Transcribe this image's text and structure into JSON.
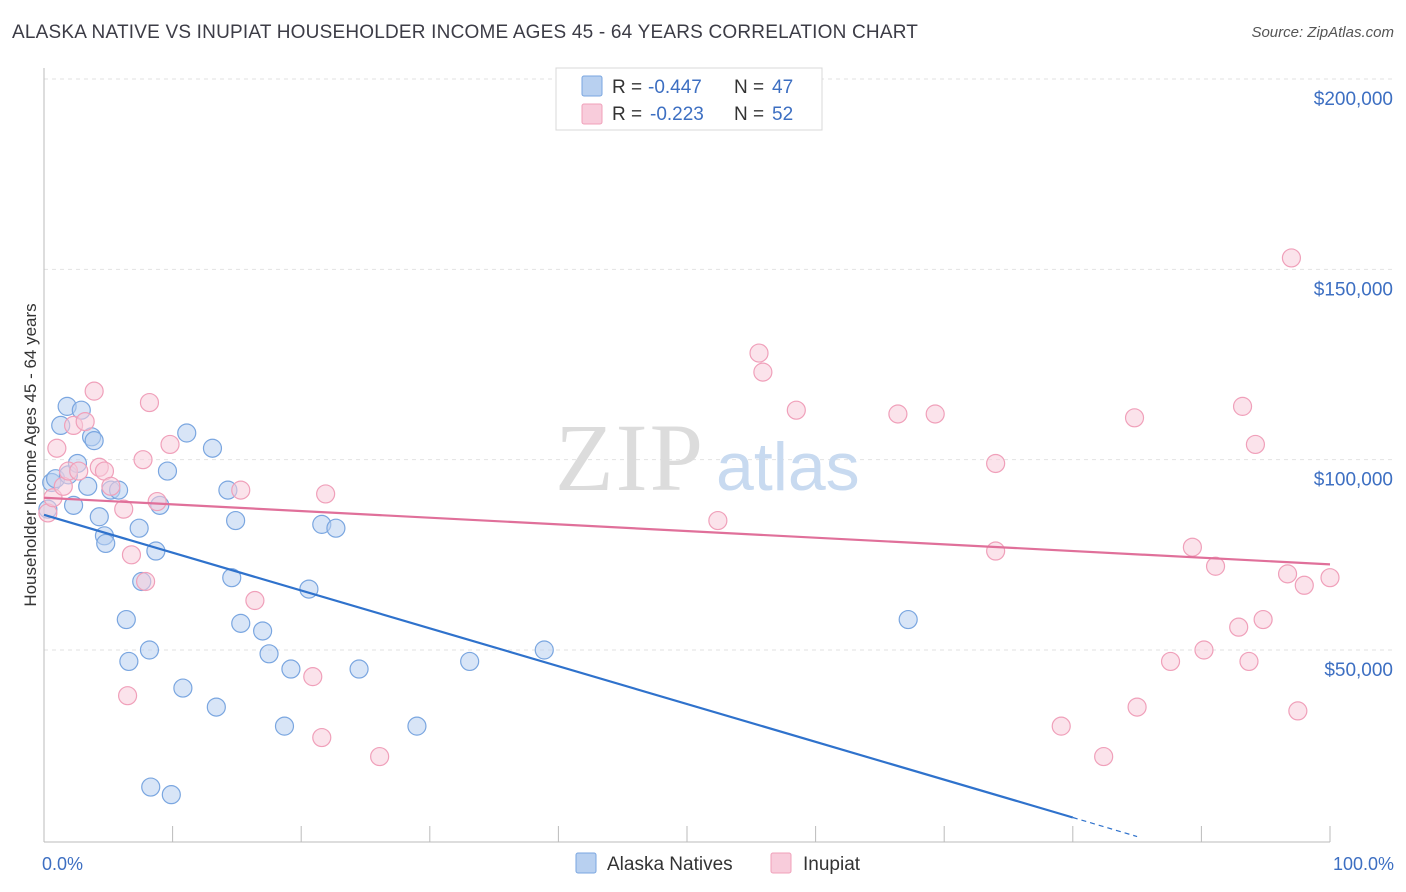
{
  "title": "ALASKA NATIVE VS INUPIAT HOUSEHOLDER INCOME AGES 45 - 64 YEARS CORRELATION CHART",
  "source": "Source: ZipAtlas.com",
  "watermark": {
    "zip": "ZIP",
    "atlas": "atlas"
  },
  "chart_data": {
    "type": "scatter",
    "title": "ALASKA NATIVE VS INUPIAT HOUSEHOLDER INCOME AGES 45 - 64 YEARS CORRELATION CHART",
    "xlabel": "",
    "ylabel": "Householder Income Ages 45 - 64 years",
    "xlim": [
      0,
      100
    ],
    "ylim": [
      5000,
      210000
    ],
    "x_tick_labels": [
      "0.0%",
      "100.0%"
    ],
    "y_ticks": [
      {
        "value": 50000,
        "label": "$50,000"
      },
      {
        "value": 100000,
        "label": "$100,000"
      },
      {
        "value": 150000,
        "label": "$150,000"
      },
      {
        "value": 200000,
        "label": "$200,000"
      }
    ],
    "legend": [
      {
        "r_label": "R =",
        "r_value": "-0.447",
        "n_label": "N =",
        "n_value": "47"
      },
      {
        "r_label": "R =",
        "r_value": "-0.223",
        "n_label": "N =",
        "n_value": "52"
      }
    ],
    "series": [
      {
        "name": "Alaska Natives",
        "color": "#7aa6e0",
        "fill": "#b8d0f0",
        "line_color": "#2f72cc",
        "trend": {
          "x0": 0,
          "y0": 85500,
          "x1": 80,
          "y1": 6000,
          "dash_to_x": 85,
          "dash_to_y": 1000
        },
        "points": [
          [
            0.3,
            87000
          ],
          [
            0.6,
            94000
          ],
          [
            0.9,
            95000
          ],
          [
            1.3,
            109000
          ],
          [
            1.8,
            114000
          ],
          [
            1.9,
            96000
          ],
          [
            2.3,
            88000
          ],
          [
            2.6,
            99000
          ],
          [
            2.9,
            113000
          ],
          [
            3.4,
            93000
          ],
          [
            3.7,
            106000
          ],
          [
            3.9,
            105000
          ],
          [
            4.3,
            85000
          ],
          [
            4.7,
            80000
          ],
          [
            4.8,
            78000
          ],
          [
            5.2,
            92000
          ],
          [
            5.8,
            92000
          ],
          [
            6.4,
            58000
          ],
          [
            6.6,
            47000
          ],
          [
            7.4,
            82000
          ],
          [
            7.6,
            68000
          ],
          [
            8.2,
            50000
          ],
          [
            8.3,
            14000
          ],
          [
            8.7,
            76000
          ],
          [
            9.0,
            88000
          ],
          [
            9.6,
            97000
          ],
          [
            9.9,
            12000
          ],
          [
            10.8,
            40000
          ],
          [
            11.1,
            107000
          ],
          [
            13.1,
            103000
          ],
          [
            13.4,
            35000
          ],
          [
            14.3,
            92000
          ],
          [
            14.6,
            69000
          ],
          [
            14.9,
            84000
          ],
          [
            15.3,
            57000
          ],
          [
            17.0,
            55000
          ],
          [
            17.5,
            49000
          ],
          [
            18.7,
            30000
          ],
          [
            19.2,
            45000
          ],
          [
            20.6,
            66000
          ],
          [
            21.6,
            83000
          ],
          [
            22.7,
            82000
          ],
          [
            24.5,
            45000
          ],
          [
            29.0,
            30000
          ],
          [
            33.1,
            47000
          ],
          [
            38.9,
            50000
          ],
          [
            67.2,
            58000
          ]
        ]
      },
      {
        "name": "Inupiat",
        "color": "#f0a0ba",
        "fill": "#f8ccdb",
        "line_color": "#e0709a",
        "trend": {
          "x0": 0,
          "y0": 90000,
          "x1": 100,
          "y1": 72500
        },
        "points": [
          [
            0.3,
            86000
          ],
          [
            0.7,
            90000
          ],
          [
            1.0,
            103000
          ],
          [
            1.5,
            93000
          ],
          [
            1.9,
            97000
          ],
          [
            2.3,
            109000
          ],
          [
            2.7,
            97000
          ],
          [
            3.2,
            110000
          ],
          [
            3.9,
            118000
          ],
          [
            4.3,
            98000
          ],
          [
            4.7,
            97000
          ],
          [
            5.2,
            93000
          ],
          [
            6.2,
            87000
          ],
          [
            6.5,
            38000
          ],
          [
            6.8,
            75000
          ],
          [
            7.7,
            100000
          ],
          [
            7.9,
            68000
          ],
          [
            8.2,
            115000
          ],
          [
            8.8,
            89000
          ],
          [
            9.8,
            104000
          ],
          [
            15.3,
            92000
          ],
          [
            16.4,
            63000
          ],
          [
            20.9,
            43000
          ],
          [
            21.6,
            27000
          ],
          [
            21.9,
            91000
          ],
          [
            26.1,
            22000
          ],
          [
            52.4,
            84000
          ],
          [
            55.6,
            128000
          ],
          [
            55.9,
            123000
          ],
          [
            58.5,
            113000
          ],
          [
            66.4,
            112000
          ],
          [
            69.3,
            112000
          ],
          [
            74.0,
            99000
          ],
          [
            74.0,
            76000
          ],
          [
            79.1,
            30000
          ],
          [
            82.4,
            22000
          ],
          [
            84.8,
            111000
          ],
          [
            85.0,
            35000
          ],
          [
            87.6,
            47000
          ],
          [
            89.3,
            77000
          ],
          [
            90.2,
            50000
          ],
          [
            91.1,
            72000
          ],
          [
            92.9,
            56000
          ],
          [
            93.2,
            114000
          ],
          [
            93.7,
            47000
          ],
          [
            94.2,
            104000
          ],
          [
            94.8,
            58000
          ],
          [
            96.7,
            70000
          ],
          [
            97.0,
            153000
          ],
          [
            97.5,
            34000
          ],
          [
            98.0,
            67000
          ],
          [
            100.0,
            69000
          ]
        ]
      }
    ]
  }
}
